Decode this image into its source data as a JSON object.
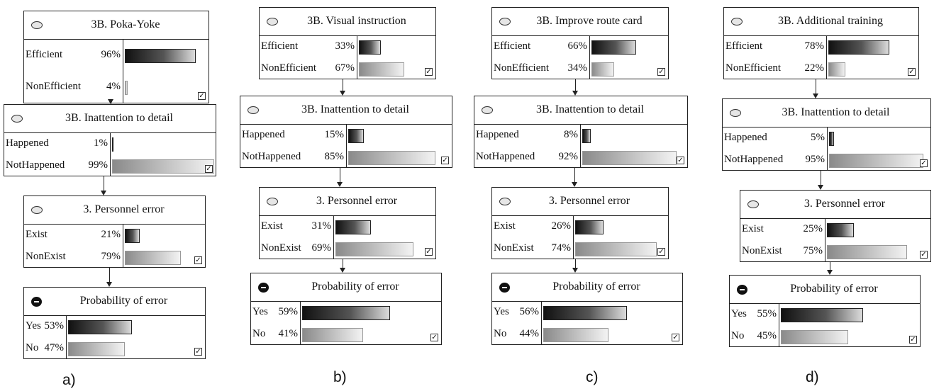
{
  "panels": [
    {
      "label": "a)",
      "nodes": [
        {
          "title": "3B. Poka-Yoke",
          "bullet": "light",
          "states": [
            {
              "name": "Efficient",
              "pct": "96%",
              "value": 96
            },
            {
              "name": "NonEfficient",
              "pct": "4%",
              "value": 4
            }
          ]
        },
        {
          "title": "3B. Inattention to detail",
          "bullet": "light",
          "states": [
            {
              "name": "Happened",
              "pct": "1%",
              "value": 1
            },
            {
              "name": "NotHappened",
              "pct": "99%",
              "value": 99
            }
          ]
        },
        {
          "title": "3. Personnel error",
          "bullet": "light",
          "states": [
            {
              "name": "Exist",
              "pct": "21%",
              "value": 21
            },
            {
              "name": "NonExist",
              "pct": "79%",
              "value": 79
            }
          ]
        },
        {
          "title": "Probability of error",
          "bullet": "dark",
          "states": [
            {
              "name": "Yes",
              "pct": "53%",
              "value": 53
            },
            {
              "name": "No",
              "pct": "47%",
              "value": 47
            }
          ]
        }
      ]
    },
    {
      "label": "b)",
      "nodes": [
        {
          "title": "3B. Visual instruction",
          "bullet": "light",
          "states": [
            {
              "name": "Efficient",
              "pct": "33%",
              "value": 33
            },
            {
              "name": "NonEfficient",
              "pct": "67%",
              "value": 67
            }
          ]
        },
        {
          "title": "3B. Inattention to detail",
          "bullet": "light",
          "states": [
            {
              "name": "Happened",
              "pct": "15%",
              "value": 15
            },
            {
              "name": "NotHappened",
              "pct": "85%",
              "value": 85
            }
          ]
        },
        {
          "title": "3. Personnel error",
          "bullet": "light",
          "states": [
            {
              "name": "Exist",
              "pct": "31%",
              "value": 31
            },
            {
              "name": "NonExist",
              "pct": "69%",
              "value": 69
            }
          ]
        },
        {
          "title": "Probability of error",
          "bullet": "dark",
          "states": [
            {
              "name": "Yes",
              "pct": "59%",
              "value": 59
            },
            {
              "name": "No",
              "pct": "41%",
              "value": 41
            }
          ]
        }
      ]
    },
    {
      "label": "c)",
      "nodes": [
        {
          "title": "3B. Improve route card",
          "bullet": "light",
          "states": [
            {
              "name": "Efficient",
              "pct": "66%",
              "value": 66
            },
            {
              "name": "NonEfficient",
              "pct": "34%",
              "value": 34
            }
          ]
        },
        {
          "title": "3B. Inattention to detail",
          "bullet": "light",
          "states": [
            {
              "name": "Happened",
              "pct": "8%",
              "value": 8
            },
            {
              "name": "NotHappened",
              "pct": "92%",
              "value": 92
            }
          ]
        },
        {
          "title": "3. Personnel error",
          "bullet": "light",
          "states": [
            {
              "name": "Exist",
              "pct": "26%",
              "value": 26
            },
            {
              "name": "NonExist",
              "pct": "74%",
              "value": 74
            }
          ]
        },
        {
          "title": "Probability of error",
          "bullet": "dark",
          "states": [
            {
              "name": "Yes",
              "pct": "56%",
              "value": 56
            },
            {
              "name": "No",
              "pct": "44%",
              "value": 44
            }
          ]
        }
      ]
    },
    {
      "label": "d)",
      "nodes": [
        {
          "title": "3B. Additional training",
          "bullet": "light",
          "states": [
            {
              "name": "Efficient",
              "pct": "78%",
              "value": 78
            },
            {
              "name": "NonEfficient",
              "pct": "22%",
              "value": 22
            }
          ]
        },
        {
          "title": "3B. Inattention to detail",
          "bullet": "light",
          "states": [
            {
              "name": "Happened",
              "pct": "5%",
              "value": 5
            },
            {
              "name": "NotHappened",
              "pct": "95%",
              "value": 95
            }
          ]
        },
        {
          "title": "3. Personnel error",
          "bullet": "light",
          "states": [
            {
              "name": "Exist",
              "pct": "25%",
              "value": 25
            },
            {
              "name": "NonExist",
              "pct": "75%",
              "value": 75
            }
          ]
        },
        {
          "title": "Probability of error",
          "bullet": "dark",
          "states": [
            {
              "name": "Yes",
              "pct": "55%",
              "value": 55
            },
            {
              "name": "No",
              "pct": "45%",
              "value": 45
            }
          ]
        }
      ]
    }
  ]
}
